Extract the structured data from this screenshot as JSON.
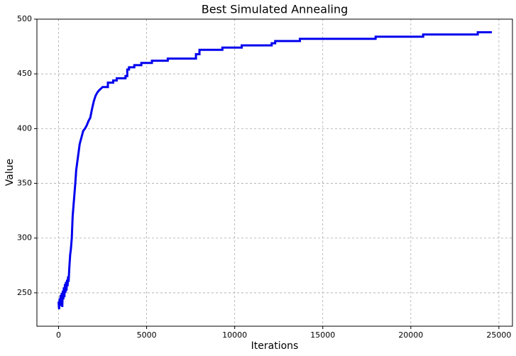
{
  "chart_data": {
    "type": "line",
    "title": "Best Simulated Annealing",
    "xlabel": "Iterations",
    "ylabel": "Value",
    "color": "#0000ee",
    "grid": true,
    "xlim": [
      -1230,
      25770
    ],
    "ylim": [
      219.5,
      500
    ],
    "xticks": [
      0,
      5000,
      10000,
      15000,
      20000,
      25000
    ],
    "yticks": [
      250,
      300,
      350,
      400,
      450,
      500
    ],
    "x": [
      0,
      30,
      60,
      90,
      120,
      150,
      180,
      210,
      240,
      270,
      300,
      330,
      360,
      390,
      420,
      450,
      480,
      510,
      540,
      570,
      600,
      630,
      660,
      700,
      750,
      800,
      850,
      900,
      950,
      1000,
      1050,
      1100,
      1150,
      1200,
      1300,
      1400,
      1500,
      1600,
      1700,
      1800,
      1900,
      2000,
      2100,
      2200,
      2300,
      2500,
      2800,
      2800,
      3100,
      3100,
      3300,
      3300,
      3800,
      3800,
      3900,
      3900,
      4000,
      4000,
      4300,
      4300,
      4700,
      4700,
      5300,
      5300,
      6200,
      6200,
      7800,
      7800,
      8000,
      8000,
      9300,
      9300,
      10400,
      10400,
      12100,
      12100,
      12300,
      12300,
      13700,
      13700,
      18000,
      18000,
      20700,
      20700,
      23800,
      23800,
      24600
    ],
    "values": [
      242,
      235,
      245,
      238,
      248,
      240,
      250,
      237,
      252,
      244,
      255,
      246,
      258,
      250,
      260,
      252,
      262,
      256,
      265,
      260,
      270,
      278,
      285,
      290,
      300,
      320,
      330,
      340,
      350,
      362,
      368,
      374,
      380,
      386,
      392,
      398,
      400,
      403,
      407,
      410,
      418,
      425,
      430,
      433,
      435,
      438,
      438,
      442,
      442,
      444,
      444,
      446,
      446,
      448,
      448,
      454,
      454,
      456,
      456,
      458,
      458,
      460,
      460,
      462,
      462,
      464,
      464,
      468,
      468,
      472,
      472,
      474,
      474,
      476,
      476,
      478,
      478,
      480,
      480,
      482,
      482,
      484,
      484,
      486,
      486,
      488,
      488
    ]
  }
}
